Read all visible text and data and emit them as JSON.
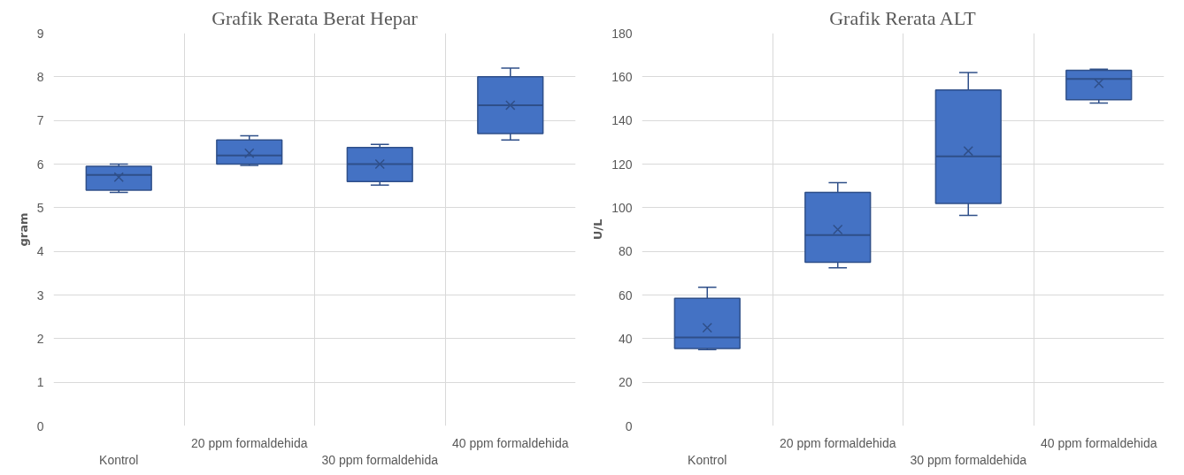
{
  "chart_data": [
    {
      "type": "box",
      "title": "Grafik Rerata Berat Hepar",
      "ylabel": "gram",
      "categories": [
        "Kontrol",
        "20 ppm formaldehida",
        "30 ppm formaldehida",
        "40 ppm formaldehida"
      ],
      "color": "#4472c4",
      "ylim": [
        0,
        9
      ],
      "yticks": [
        0,
        1,
        2,
        3,
        4,
        5,
        6,
        7,
        8,
        9
      ],
      "grid": true,
      "boxes": [
        {
          "low": 5.35,
          "q1": 5.4,
          "median": 5.75,
          "q3": 5.95,
          "high": 6.0,
          "mean": 5.7
        },
        {
          "low": 5.97,
          "q1": 6.0,
          "median": 6.2,
          "q3": 6.55,
          "high": 6.65,
          "mean": 6.25
        },
        {
          "low": 5.52,
          "q1": 5.6,
          "median": 6.0,
          "q3": 6.38,
          "high": 6.45,
          "mean": 6.0
        },
        {
          "low": 6.55,
          "q1": 6.7,
          "median": 7.35,
          "q3": 8.0,
          "high": 8.2,
          "mean": 7.35
        }
      ]
    },
    {
      "type": "box",
      "title": "Grafik Rerata ALT",
      "ylabel": "U/L",
      "categories": [
        "Kontrol",
        "20 ppm formaldehida",
        "30 ppm formaldehida",
        "40 ppm formaldehida"
      ],
      "color": "#4472c4",
      "ylim": [
        0,
        180
      ],
      "yticks": [
        0,
        20,
        40,
        60,
        80,
        100,
        120,
        140,
        160,
        180
      ],
      "grid": true,
      "boxes": [
        {
          "low": 35,
          "q1": 35.5,
          "median": 40.5,
          "q3": 58.5,
          "high": 63.5,
          "mean": 45
        },
        {
          "low": 72.5,
          "q1": 75,
          "median": 87.5,
          "q3": 107,
          "high": 111.5,
          "mean": 90
        },
        {
          "low": 96.5,
          "q1": 102,
          "median": 123.5,
          "q3": 154,
          "high": 162,
          "mean": 126
        },
        {
          "low": 148,
          "q1": 149.5,
          "median": 159,
          "q3": 163,
          "high": 163.5,
          "mean": 157
        }
      ]
    }
  ]
}
